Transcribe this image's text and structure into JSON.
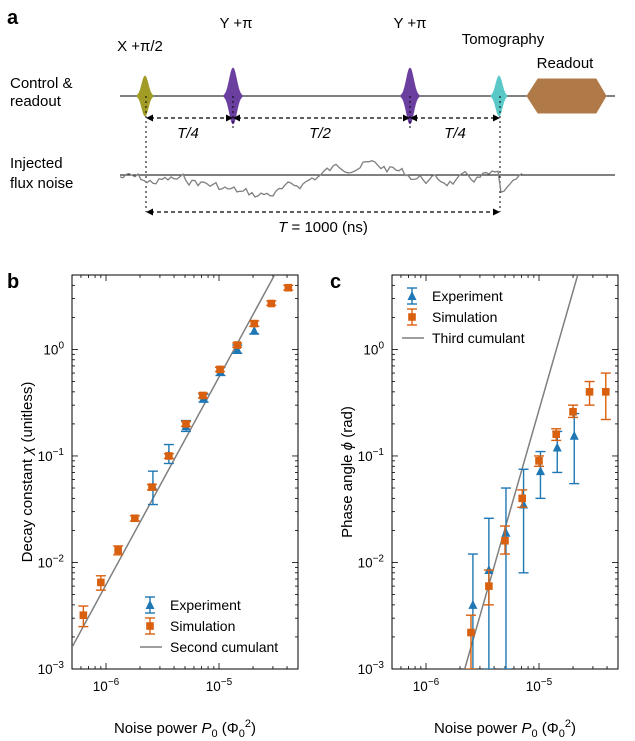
{
  "colors": {
    "experiment": "#1f77b4",
    "simulation": "#d9600e",
    "theory": "#7f7f7f",
    "pulse_x": "#a19c26",
    "pulse_y": "#6b3fa0",
    "pulse_tomo": "#5bc8c8",
    "readout": "#b07a48"
  },
  "panel_a": {
    "panel_label": "a",
    "pulse_x_label": "X +π/2",
    "pulse_y1_label": "Y +π",
    "pulse_y2_label": "Y +π",
    "tomography_label": "Tomography",
    "readout_label": "Readout",
    "control_label_1": "Control &",
    "control_label_2": "readout",
    "noise_label_1": "Injected",
    "noise_label_2": "flux noise",
    "interval_1": "T/4",
    "interval_2": "T/2",
    "interval_3": "T/4",
    "total_label": "T = 1000 (ns)"
  },
  "chart_data": [
    {
      "panel_label": "b",
      "type": "scatter",
      "xscale": "log",
      "yscale": "log",
      "xlim": [
        5e-07,
        5e-05
      ],
      "ylim": [
        0.001,
        5
      ],
      "xlabel": "Noise power P0 (Φ0²)",
      "xlabel_parts": {
        "pre": "Noise power ",
        "var": "P",
        "sub": "0",
        "unit_open": " (Φ",
        "unit_sub": "0",
        "unit_sup": "2",
        "unit_close": ")"
      },
      "ylabel": "Decay constant χ (unitless)",
      "ylabel_parts": {
        "pre": "Decay constant ",
        "var": "χ",
        "post": " (unitless)"
      },
      "xticks": [
        {
          "value": 1e-06,
          "base": "10",
          "exp": "−6"
        },
        {
          "value": 1e-05,
          "base": "10",
          "exp": "−5"
        }
      ],
      "yticks": [
        {
          "value": 0.001,
          "base": "10",
          "exp": "−3"
        },
        {
          "value": 0.01,
          "base": "10",
          "exp": "−2"
        },
        {
          "value": 0.1,
          "base": "10",
          "exp": "−1"
        },
        {
          "value": 1,
          "base": "10",
          "exp": "0"
        }
      ],
      "legend_position": "lower-right",
      "series": [
        {
          "name": "Experiment",
          "marker": "triangle",
          "x": [
            2.6e-06,
            3.6e-06,
            5.1e-06,
            7.3e-06,
            1.03e-05,
            1.45e-05,
            2.05e-05
          ],
          "y": [
            0.052,
            0.102,
            0.19,
            0.35,
            0.62,
            1.0,
            1.5
          ],
          "err_low": [
            0.035,
            0.085,
            0.17,
            0.32,
            0.57,
            0.92,
            1.4
          ],
          "err_high": [
            0.072,
            0.128,
            0.215,
            0.38,
            0.68,
            1.1,
            1.65
          ]
        },
        {
          "name": "Simulation",
          "marker": "square",
          "x": [
            6.3e-07,
            9e-07,
            1.28e-06,
            1.8e-06,
            2.55e-06,
            3.6e-06,
            5.1e-06,
            7.2e-06,
            1.02e-05,
            1.45e-05,
            2.05e-05,
            2.9e-05,
            4.1e-05
          ],
          "y": [
            0.0032,
            0.0065,
            0.013,
            0.026,
            0.051,
            0.1,
            0.2,
            0.37,
            0.65,
            1.1,
            1.75,
            2.7,
            3.8
          ],
          "err_low": [
            0.0025,
            0.0055,
            0.0118,
            0.0245,
            0.048,
            0.095,
            0.19,
            0.35,
            0.62,
            1.05,
            1.65,
            2.6,
            3.6
          ],
          "err_high": [
            0.0039,
            0.0075,
            0.0143,
            0.0275,
            0.054,
            0.105,
            0.21,
            0.39,
            0.68,
            1.15,
            1.85,
            2.85,
            4.0
          ]
        },
        {
          "name": "Second cumulant",
          "marker": "line",
          "x": [
            5e-07,
            3.1e-05
          ],
          "y": [
            0.0016,
            5
          ]
        }
      ]
    },
    {
      "panel_label": "c",
      "type": "scatter",
      "xscale": "log",
      "yscale": "log",
      "xlim": [
        5e-07,
        5e-05
      ],
      "ylim": [
        0.001,
        5
      ],
      "xlabel": "Noise power P0 (Φ0²)",
      "xlabel_parts": {
        "pre": "Noise power ",
        "var": "P",
        "sub": "0",
        "unit_open": " (Φ",
        "unit_sub": "0",
        "unit_sup": "2",
        "unit_close": ")"
      },
      "ylabel": "Phase angle ϕ (rad)",
      "ylabel_parts": {
        "pre": "Phase angle ",
        "var": "ϕ",
        "post": " (rad)"
      },
      "xticks": [
        {
          "value": 1e-06,
          "base": "10",
          "exp": "−6"
        },
        {
          "value": 1e-05,
          "base": "10",
          "exp": "−5"
        }
      ],
      "yticks": [
        {
          "value": 0.001,
          "base": "10",
          "exp": "−3"
        },
        {
          "value": 0.01,
          "base": "10",
          "exp": "−2"
        },
        {
          "value": 0.1,
          "base": "10",
          "exp": "−1"
        },
        {
          "value": 1,
          "base": "10",
          "exp": "0"
        }
      ],
      "legend_position": "upper-left",
      "series": [
        {
          "name": "Experiment",
          "marker": "triangle",
          "x": [
            2.6e-06,
            3.6e-06,
            5.1e-06,
            7.3e-06,
            1.03e-05,
            1.45e-05,
            2.05e-05
          ],
          "y": [
            0.004,
            0.0085,
            0.019,
            0.035,
            0.072,
            0.12,
            0.155
          ],
          "err_low": [
            0.0008,
            0.001,
            0.001,
            0.008,
            0.04,
            0.07,
            0.055
          ],
          "err_high": [
            0.012,
            0.026,
            0.05,
            0.075,
            0.11,
            0.17,
            0.25
          ]
        },
        {
          "name": "Simulation",
          "marker": "square",
          "x": [
            2.5e-06,
            3.6e-06,
            5e-06,
            7.1e-06,
            1e-05,
            1.42e-05,
            2e-05,
            2.8e-05,
            3.9e-05
          ],
          "y": [
            0.0022,
            0.006,
            0.016,
            0.04,
            0.09,
            0.16,
            0.26,
            0.4,
            0.4
          ],
          "err_low": [
            0.001,
            0.004,
            0.012,
            0.033,
            0.08,
            0.14,
            0.23,
            0.3,
            0.22
          ],
          "err_high": [
            0.0032,
            0.0085,
            0.022,
            0.048,
            0.1,
            0.18,
            0.3,
            0.5,
            0.6
          ]
        },
        {
          "name": "Third cumulant",
          "marker": "line",
          "x": [
            2.2e-06,
            2.2e-05
          ],
          "y": [
            0.001,
            5
          ]
        }
      ]
    }
  ]
}
